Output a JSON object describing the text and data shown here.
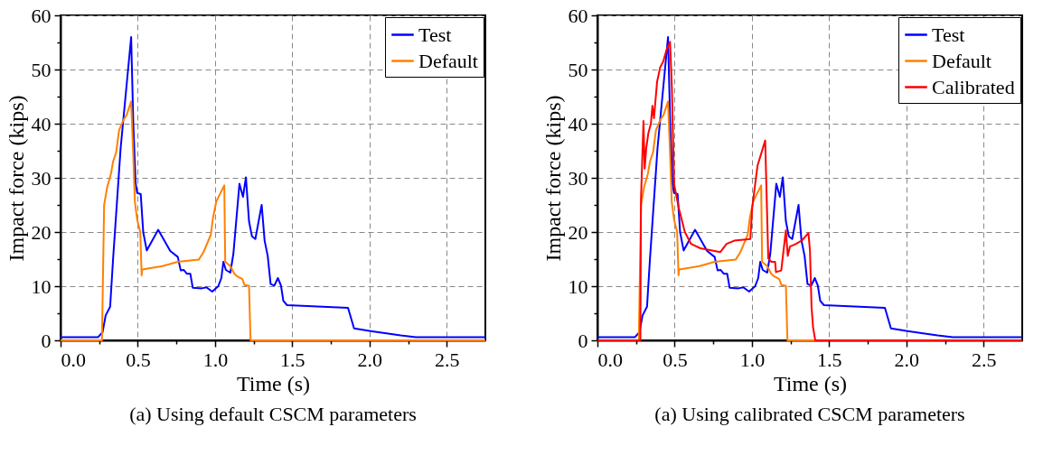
{
  "chart_data": [
    {
      "type": "line",
      "title": "(a) Using default CSCM parameters",
      "xlabel": "Time (s)",
      "ylabel": "Impact force (kips)",
      "xlim": [
        0,
        2.75
      ],
      "xticks": [
        {
          "value": 0,
          "label": "0.0"
        },
        {
          "value": 0.25,
          "label": null
        },
        {
          "value": 0.5,
          "label": "0.5"
        },
        {
          "value": 0.75,
          "label": null
        },
        {
          "value": 1,
          "label": "1.0"
        },
        {
          "value": 1.25,
          "label": null
        },
        {
          "value": 1.5,
          "label": "1.5"
        },
        {
          "value": 1.75,
          "label": null
        },
        {
          "value": 2,
          "label": "2.0"
        },
        {
          "value": 2.25,
          "label": null
        },
        {
          "value": 2.5,
          "label": "2.5"
        }
      ],
      "ylim": [
        0,
        60
      ],
      "yticks": [
        0,
        {
          "value": 5,
          "label": null
        },
        10,
        {
          "value": 15,
          "label": null
        },
        20,
        {
          "value": 25,
          "label": null
        },
        30,
        {
          "value": 35,
          "label": null
        },
        40,
        {
          "value": 45,
          "label": null
        },
        50,
        {
          "value": 55,
          "label": null
        },
        60
      ],
      "grid": true,
      "legend": "top right",
      "line_style": "solid",
      "marker": "none",
      "series": [
        {
          "name": "Test",
          "color": "#0000ff",
          "x": [
            0,
            0.243,
            0.272,
            0.292,
            0.321,
            0.34,
            0.389,
            0.457,
            0.471,
            0.486,
            0.496,
            0.519,
            0.535,
            0.558,
            0.632,
            0.71,
            0.759,
            0.778,
            0.798,
            0.817,
            0.84,
            0.856,
            0.914,
            0.944,
            0.982,
            1.021,
            1.041,
            1.054,
            1.07,
            1.099,
            1.119,
            1.158,
            1.181,
            1.2,
            1.22,
            1.239,
            1.261,
            1.302,
            1.321,
            1.341,
            1.36,
            1.384,
            1.407,
            1.427,
            1.442,
            1.466,
            1.861,
            1.9,
            2.007,
            2.202,
            2.3,
            2.75
          ],
          "values": [
            0.6,
            0.6,
            1.5,
            4.6,
            6.2,
            15,
            35.5,
            56,
            40,
            29,
            27.2,
            27,
            20,
            16.6,
            20.4,
            16.5,
            15.4,
            12.9,
            13,
            12.3,
            12.3,
            9.7,
            9.6,
            9.8,
            9.0,
            10,
            11.5,
            14.5,
            13,
            12.5,
            16,
            28.9,
            26.5,
            30.1,
            22,
            19.2,
            18.7,
            25,
            18.4,
            15.6,
            10.4,
            10.1,
            11.5,
            10.1,
            7.3,
            6.5,
            6.0,
            2.2,
            1.7,
            0.9,
            0.6,
            0.6
          ]
        },
        {
          "name": "Default",
          "color": "#ff8000",
          "x": [
            0,
            0.268,
            0.282,
            0.302,
            0.327,
            0.34,
            0.36,
            0.379,
            0.409,
            0.428,
            0.457,
            0.471,
            0.481,
            0.496,
            0.516,
            0.525,
            0.529,
            0.661,
            0.759,
            0.895,
            0.924,
            0.973,
            0.986,
            1.008,
            1.021,
            1.06,
            1.066,
            1.099,
            1.125,
            1.144,
            1.177,
            1.191,
            1.22,
            1.23,
            2.75
          ],
          "values": [
            0,
            0,
            25,
            28.3,
            30.8,
            33,
            34.7,
            38.8,
            40.8,
            41.6,
            44.1,
            33.9,
            25.6,
            22.3,
            20,
            12.0,
            13.1,
            13.7,
            14.5,
            14.9,
            16.2,
            19.5,
            22.5,
            25.6,
            26.4,
            28.6,
            14.5,
            13.7,
            12.3,
            11.8,
            11.3,
            10.2,
            10.1,
            0,
            0
          ]
        }
      ]
    },
    {
      "type": "line",
      "title": "(a) Using calibrated CSCM parameters",
      "xlabel": "Time (s)",
      "ylabel": "Impact force (kips)",
      "xlim": [
        0,
        2.75
      ],
      "xticks": [
        {
          "value": 0,
          "label": "0.0"
        },
        {
          "value": 0.25,
          "label": null
        },
        {
          "value": 0.5,
          "label": "0.5"
        },
        {
          "value": 0.75,
          "label": null
        },
        {
          "value": 1,
          "label": "1.0"
        },
        {
          "value": 1.25,
          "label": null
        },
        {
          "value": 1.5,
          "label": "1.5"
        },
        {
          "value": 1.75,
          "label": null
        },
        {
          "value": 2,
          "label": "2.0"
        },
        {
          "value": 2.25,
          "label": null
        },
        {
          "value": 2.5,
          "label": "2.5"
        }
      ],
      "ylim": [
        0,
        60
      ],
      "yticks": [
        0,
        {
          "value": 5,
          "label": null
        },
        10,
        {
          "value": 15,
          "label": null
        },
        20,
        {
          "value": 25,
          "label": null
        },
        30,
        {
          "value": 35,
          "label": null
        },
        40,
        {
          "value": 45,
          "label": null
        },
        50,
        {
          "value": 55,
          "label": null
        },
        60
      ],
      "grid": true,
      "legend": "top right",
      "line_style": "solid",
      "marker": "none",
      "series": [
        {
          "name": "Test",
          "color": "#0000ff",
          "x": [
            0,
            0.243,
            0.272,
            0.292,
            0.321,
            0.34,
            0.389,
            0.457,
            0.471,
            0.486,
            0.496,
            0.519,
            0.535,
            0.558,
            0.632,
            0.71,
            0.759,
            0.778,
            0.798,
            0.817,
            0.84,
            0.856,
            0.914,
            0.944,
            0.982,
            1.021,
            1.041,
            1.054,
            1.07,
            1.099,
            1.119,
            1.158,
            1.181,
            1.2,
            1.22,
            1.239,
            1.261,
            1.302,
            1.321,
            1.341,
            1.36,
            1.384,
            1.407,
            1.427,
            1.442,
            1.466,
            1.861,
            1.9,
            2.007,
            2.202,
            2.3,
            2.75
          ],
          "values": [
            0.6,
            0.6,
            1.5,
            4.6,
            6.2,
            15,
            35.5,
            56,
            40,
            29,
            27.2,
            27,
            20,
            16.6,
            20.4,
            16.5,
            15.4,
            12.9,
            13,
            12.3,
            12.3,
            9.7,
            9.6,
            9.8,
            9.0,
            10,
            11.5,
            14.5,
            13,
            12.5,
            16,
            28.9,
            26.5,
            30.1,
            22,
            19.2,
            18.7,
            25,
            18.4,
            15.6,
            10.4,
            10.1,
            11.5,
            10.1,
            7.3,
            6.5,
            6.0,
            2.2,
            1.7,
            0.9,
            0.6,
            0.6
          ]
        },
        {
          "name": "Default",
          "color": "#ff8000",
          "x": [
            0,
            0.268,
            0.282,
            0.302,
            0.327,
            0.34,
            0.36,
            0.379,
            0.409,
            0.428,
            0.457,
            0.471,
            0.481,
            0.496,
            0.516,
            0.525,
            0.529,
            0.661,
            0.759,
            0.895,
            0.924,
            0.973,
            0.986,
            1.008,
            1.021,
            1.06,
            1.066,
            1.099,
            1.125,
            1.144,
            1.177,
            1.191,
            1.22,
            1.23,
            2.75
          ],
          "values": [
            0,
            0,
            25,
            28.3,
            30.8,
            33,
            34.7,
            38.8,
            40.8,
            41.6,
            44.1,
            33.9,
            25.6,
            22.3,
            20,
            12.0,
            13.1,
            13.7,
            14.5,
            14.9,
            16.2,
            19.5,
            22.5,
            25.6,
            26.4,
            28.6,
            14.5,
            13.7,
            12.3,
            11.8,
            11.3,
            10.2,
            10.1,
            0,
            0
          ]
        },
        {
          "name": "Calibrated",
          "color": "#ff0000",
          "x": [
            0,
            0.278,
            0.282,
            0.298,
            0.306,
            0.316,
            0.33,
            0.346,
            0.356,
            0.366,
            0.386,
            0.406,
            0.426,
            0.446,
            0.47,
            0.482,
            0.496,
            0.526,
            0.566,
            0.606,
            0.666,
            0.796,
            0.836,
            0.886,
            0.99,
            1.002,
            1.036,
            1.086,
            1.106,
            1.126,
            1.15,
            1.156,
            1.19,
            1.202,
            1.22,
            1.232,
            1.246,
            1.286,
            1.326,
            1.366,
            1.376,
            1.386,
            1.396,
            1.41,
            2.75
          ],
          "values": [
            0,
            0,
            26.1,
            40.5,
            31.7,
            35.5,
            38.3,
            40,
            43.3,
            41,
            47.7,
            50.4,
            51.5,
            53.5,
            55.1,
            46.6,
            28.9,
            24.5,
            20,
            17.8,
            17,
            16.3,
            17.8,
            18.4,
            18.7,
            24.5,
            32.2,
            36.9,
            15.1,
            14.5,
            14.5,
            12.6,
            12.9,
            15.9,
            20.3,
            15.6,
            17.3,
            17.8,
            18.5,
            19.8,
            16.5,
            6.2,
            2.4,
            0,
            0
          ]
        }
      ]
    }
  ]
}
